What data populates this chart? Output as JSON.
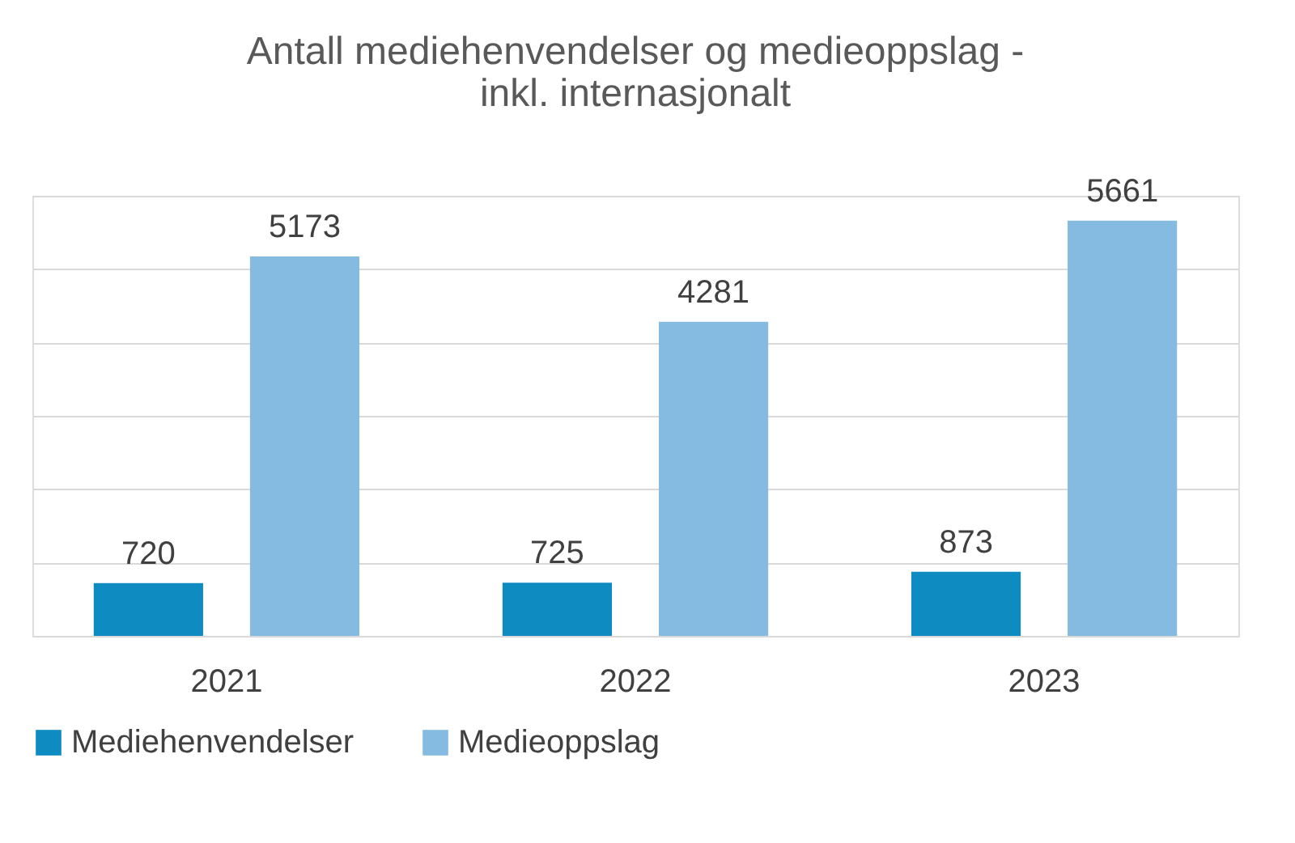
{
  "chart_data": {
    "type": "bar",
    "title": "Antall mediehenvendelser og medieoppslag -\ninkl. internasjonalt",
    "categories": [
      "2021",
      "2022",
      "2023"
    ],
    "series": [
      {
        "name": "Mediehenvendelser",
        "color": "#0e8bc0",
        "values": [
          720,
          725,
          873
        ]
      },
      {
        "name": "Medieoppslag",
        "color": "#85bbe0",
        "values": [
          5173,
          4281,
          5661
        ]
      }
    ],
    "ylim": [
      0,
      6000
    ],
    "yticks": [
      {
        "value": 0,
        "label": null
      },
      {
        "value": 1000,
        "label": null
      },
      {
        "value": 2000,
        "label": null
      },
      {
        "value": 3000,
        "label": null
      },
      {
        "value": 4000,
        "label": null
      },
      {
        "value": 5000,
        "label": null
      },
      {
        "value": 6000,
        "label": null
      }
    ],
    "grid": "y",
    "legend": "bottom",
    "data_labels": true,
    "tick_labels": "x"
  }
}
